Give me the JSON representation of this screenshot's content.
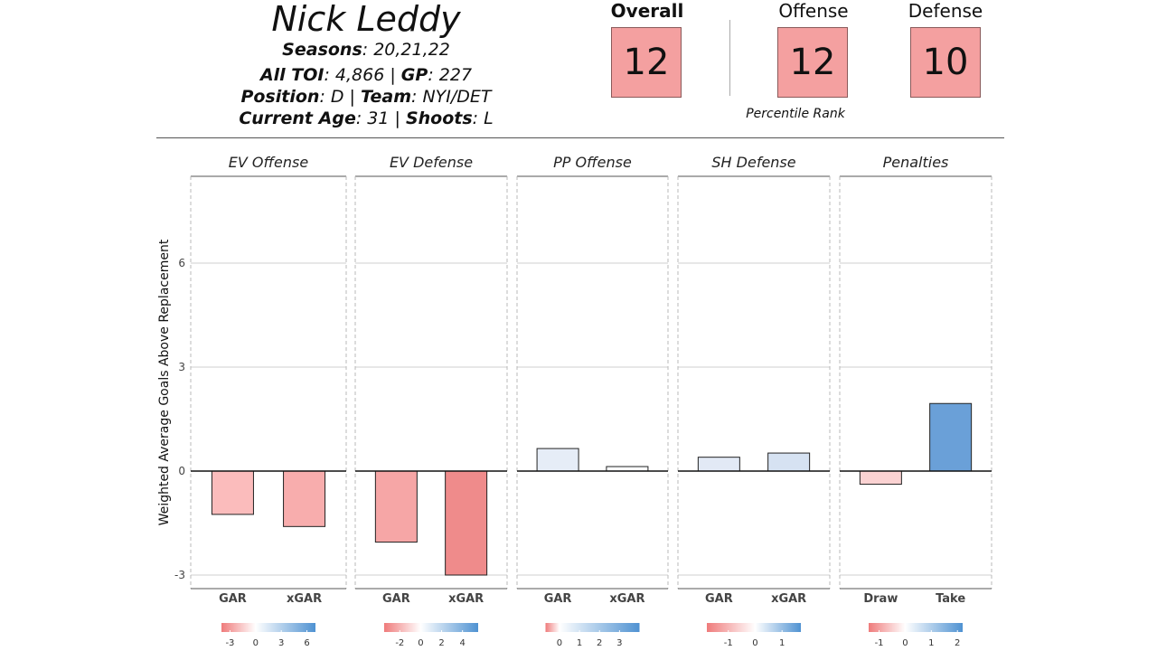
{
  "player": {
    "name": "Nick Leddy",
    "seasons_label": "Seasons",
    "seasons": ": 20,21,22",
    "toi_label": "All TOI",
    "toi": ": 4,866 | ",
    "gp_label": "GP",
    "gp": ": 227",
    "position_label": "Position",
    "position": ": D | ",
    "team_label": "Team",
    "team": ": NYI/DET",
    "age_label": "Current  Age",
    "age": ": 31 | ",
    "shoots_label": "Shoots",
    "shoots": ": L"
  },
  "ranks": {
    "overall_label": "Overall",
    "overall": "12",
    "offense_label": "Offense",
    "offense": "12",
    "defense_label": "Defense",
    "defense": "10",
    "percentile_label": "Percentile Rank",
    "box_color": "#f4a0a0"
  },
  "chart_data": {
    "type": "bar",
    "ylabel": "Weighted Average Goals Above Replacement",
    "ylim": [
      -3.3,
      8.6
    ],
    "yticks": [
      -3,
      0,
      3,
      6
    ],
    "panels": [
      {
        "title": "EV Offense",
        "categories": [
          "GAR",
          "xGAR"
        ],
        "values": [
          -1.25,
          -1.6
        ],
        "colors": [
          "#fbbcbc",
          "#f8adad"
        ],
        "legend_ticks": [
          -3,
          0,
          3,
          6
        ],
        "legend_range": [
          -4,
          7
        ]
      },
      {
        "title": "EV Defense",
        "categories": [
          "GAR",
          "xGAR"
        ],
        "values": [
          -2.05,
          -3.0
        ],
        "colors": [
          "#f6a6a6",
          "#ef8b8b"
        ],
        "legend_ticks": [
          -2,
          0,
          2,
          4
        ],
        "legend_range": [
          -3.5,
          5.5
        ]
      },
      {
        "title": "PP Offense",
        "categories": [
          "GAR",
          "xGAR"
        ],
        "values": [
          0.65,
          0.13
        ],
        "colors": [
          "#e6edf7",
          "#f9fbfd"
        ],
        "legend_ticks": [
          0,
          1,
          2,
          3
        ],
        "legend_range": [
          -0.7,
          4.0
        ]
      },
      {
        "title": "SH Defense",
        "categories": [
          "GAR",
          "xGAR"
        ],
        "values": [
          0.4,
          0.52
        ],
        "colors": [
          "#e2e9f5",
          "#d6e2f2"
        ],
        "legend_ticks": [
          -1,
          0,
          1
        ],
        "legend_range": [
          -1.8,
          1.7
        ]
      },
      {
        "title": "Penalties",
        "categories": [
          "Draw",
          "Take"
        ],
        "values": [
          -0.38,
          1.95
        ],
        "colors": [
          "#fbd2d2",
          "#6aa0d8"
        ],
        "legend_ticks": [
          -1,
          0,
          1,
          2
        ],
        "legend_range": [
          -1.4,
          2.2
        ]
      }
    ],
    "gradient": {
      "low": "#ef7b7b",
      "mid": "#ffffff",
      "high": "#4f92d2"
    }
  }
}
